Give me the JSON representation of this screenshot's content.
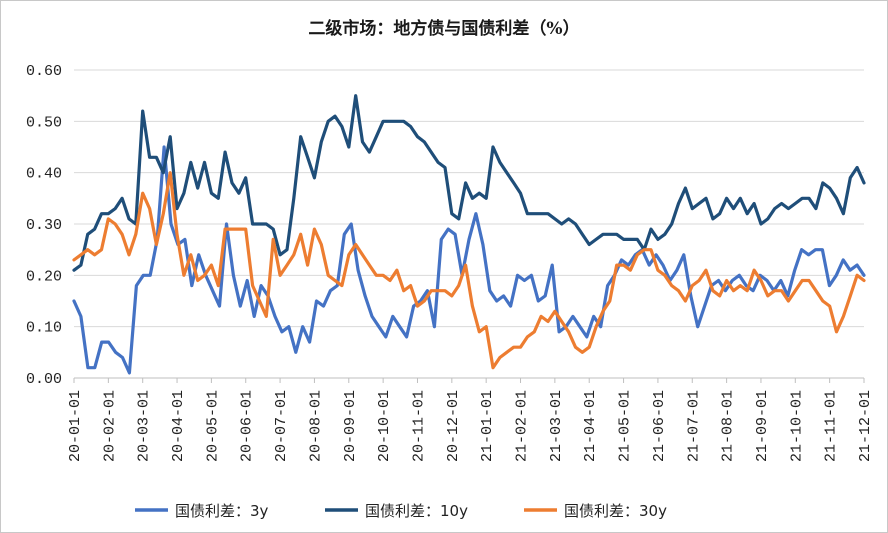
{
  "chart_data": {
    "type": "line",
    "title": "二级市场：地方债与国债利差（%）",
    "xlabel": "",
    "ylabel": "",
    "ylim": [
      0,
      0.6
    ],
    "yticks": [
      "0.00",
      "0.10",
      "0.20",
      "0.30",
      "0.40",
      "0.50",
      "0.60"
    ],
    "xticks": [
      "20-01-01",
      "20-02-01",
      "20-03-01",
      "20-04-01",
      "20-05-01",
      "20-06-01",
      "20-07-01",
      "20-08-01",
      "20-09-01",
      "20-10-01",
      "20-11-01",
      "20-12-01",
      "21-01-01",
      "21-02-01",
      "21-03-01",
      "21-04-01",
      "21-05-01",
      "21-06-01",
      "21-07-01",
      "21-08-01",
      "21-09-01",
      "21-10-01",
      "21-11-01",
      "21-12-01"
    ],
    "grid": "horizontal",
    "legend": "bottom",
    "series": [
      {
        "name": "国债利差：3y",
        "color": "#4472C4",
        "values": [
          0.15,
          0.12,
          0.02,
          0.02,
          0.07,
          0.07,
          0.05,
          0.04,
          0.01,
          0.18,
          0.2,
          0.2,
          0.27,
          0.45,
          0.3,
          0.26,
          0.27,
          0.18,
          0.24,
          0.2,
          0.17,
          0.14,
          0.3,
          0.2,
          0.14,
          0.19,
          0.12,
          0.18,
          0.16,
          0.12,
          0.09,
          0.1,
          0.05,
          0.1,
          0.07,
          0.15,
          0.14,
          0.17,
          0.18,
          0.28,
          0.3,
          0.21,
          0.16,
          0.12,
          0.1,
          0.08,
          0.12,
          0.1,
          0.08,
          0.14,
          0.15,
          0.17,
          0.1,
          0.27,
          0.29,
          0.28,
          0.2,
          0.27,
          0.32,
          0.26,
          0.17,
          0.15,
          0.16,
          0.14,
          0.2,
          0.19,
          0.2,
          0.15,
          0.16,
          0.22,
          0.09,
          0.1,
          0.12,
          0.1,
          0.08,
          0.12,
          0.1,
          0.18,
          0.2,
          0.23,
          0.22,
          0.24,
          0.25,
          0.22,
          0.24,
          0.22,
          0.19,
          0.21,
          0.24,
          0.16,
          0.1,
          0.14,
          0.18,
          0.19,
          0.17,
          0.19,
          0.2,
          0.18,
          0.17,
          0.2,
          0.19,
          0.17,
          0.19,
          0.16,
          0.21,
          0.25,
          0.24,
          0.25,
          0.25,
          0.18,
          0.2,
          0.23,
          0.21,
          0.22,
          0.2
        ]
      },
      {
        "name": "国债利差：10y",
        "color": "#1F4E79",
        "values": [
          0.21,
          0.22,
          0.28,
          0.29,
          0.32,
          0.32,
          0.33,
          0.35,
          0.31,
          0.3,
          0.52,
          0.43,
          0.43,
          0.4,
          0.47,
          0.33,
          0.36,
          0.42,
          0.37,
          0.42,
          0.36,
          0.35,
          0.44,
          0.38,
          0.36,
          0.39,
          0.3,
          0.3,
          0.3,
          0.29,
          0.24,
          0.25,
          0.35,
          0.47,
          0.43,
          0.39,
          0.46,
          0.5,
          0.51,
          0.49,
          0.45,
          0.55,
          0.46,
          0.44,
          0.47,
          0.5,
          0.5,
          0.5,
          0.5,
          0.49,
          0.47,
          0.46,
          0.44,
          0.42,
          0.41,
          0.32,
          0.31,
          0.38,
          0.35,
          0.36,
          0.35,
          0.45,
          0.42,
          0.4,
          0.38,
          0.36,
          0.32,
          0.32,
          0.32,
          0.32,
          0.31,
          0.3,
          0.31,
          0.3,
          0.28,
          0.26,
          0.27,
          0.28,
          0.28,
          0.28,
          0.27,
          0.27,
          0.27,
          0.25,
          0.29,
          0.27,
          0.28,
          0.3,
          0.34,
          0.37,
          0.33,
          0.34,
          0.35,
          0.31,
          0.32,
          0.35,
          0.33,
          0.35,
          0.32,
          0.34,
          0.3,
          0.31,
          0.33,
          0.34,
          0.33,
          0.34,
          0.35,
          0.35,
          0.33,
          0.38,
          0.37,
          0.35,
          0.32,
          0.39,
          0.41,
          0.38
        ]
      },
      {
        "name": "国债利差：30y",
        "color": "#ED7D31",
        "values": [
          0.23,
          0.24,
          0.25,
          0.24,
          0.25,
          0.31,
          0.3,
          0.28,
          0.24,
          0.28,
          0.36,
          0.33,
          0.26,
          0.32,
          0.4,
          0.28,
          0.2,
          0.24,
          0.19,
          0.2,
          0.22,
          0.18,
          0.29,
          0.29,
          0.29,
          0.29,
          0.18,
          0.15,
          0.12,
          0.27,
          0.2,
          0.22,
          0.24,
          0.28,
          0.22,
          0.29,
          0.26,
          0.2,
          0.19,
          0.18,
          0.24,
          0.26,
          0.24,
          0.22,
          0.2,
          0.2,
          0.19,
          0.21,
          0.17,
          0.18,
          0.14,
          0.15,
          0.17,
          0.17,
          0.17,
          0.16,
          0.18,
          0.22,
          0.14,
          0.09,
          0.1,
          0.02,
          0.04,
          0.05,
          0.06,
          0.06,
          0.08,
          0.09,
          0.12,
          0.11,
          0.13,
          0.11,
          0.09,
          0.06,
          0.05,
          0.06,
          0.1,
          0.13,
          0.15,
          0.22,
          0.22,
          0.21,
          0.24,
          0.25,
          0.25,
          0.21,
          0.2,
          0.18,
          0.17,
          0.15,
          0.18,
          0.19,
          0.21,
          0.17,
          0.16,
          0.19,
          0.17,
          0.18,
          0.17,
          0.21,
          0.19,
          0.16,
          0.17,
          0.17,
          0.15,
          0.17,
          0.19,
          0.19,
          0.17,
          0.15,
          0.14,
          0.09,
          0.12,
          0.16,
          0.2,
          0.19
        ]
      }
    ]
  }
}
